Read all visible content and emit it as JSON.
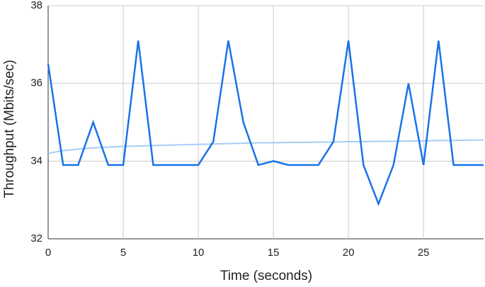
{
  "chart_data": {
    "type": "line",
    "x_label": "Time (seconds)",
    "y_label": "Throughput (Mbits/sec)",
    "x": [
      0,
      1,
      2,
      3,
      4,
      5,
      6,
      7,
      8,
      9,
      10,
      11,
      12,
      13,
      14,
      15,
      16,
      17,
      18,
      19,
      20,
      21,
      22,
      23,
      24,
      25,
      26,
      27,
      28,
      29
    ],
    "series": [
      {
        "color": "#1a73e8",
        "width": 2.5,
        "values": [
          36.5,
          33.9,
          33.9,
          35.0,
          33.9,
          33.9,
          37.1,
          33.9,
          33.9,
          33.9,
          33.9,
          34.5,
          37.1,
          35.0,
          33.9,
          34.0,
          33.9,
          33.9,
          33.9,
          34.5,
          37.1,
          33.9,
          32.9,
          33.9,
          36.0,
          33.9,
          37.1,
          33.9,
          33.9,
          33.9
        ]
      },
      {
        "color": "#a8cdf5",
        "width": 2,
        "values": [
          34.2,
          34.27,
          34.31,
          34.34,
          34.36,
          34.38,
          34.39,
          34.4,
          34.41,
          34.42,
          34.43,
          34.44,
          34.45,
          34.46,
          34.47,
          34.47,
          34.48,
          34.48,
          34.49,
          34.49,
          34.5,
          34.5,
          34.51,
          34.51,
          34.52,
          34.52,
          34.53,
          34.53,
          34.54,
          34.54
        ]
      }
    ],
    "xlim": [
      0,
      29
    ],
    "ylim": [
      32,
      38
    ],
    "xticks": [
      0,
      5,
      10,
      15,
      20,
      25
    ],
    "yticks": [
      32,
      34,
      36,
      38
    ],
    "grid": true
  }
}
